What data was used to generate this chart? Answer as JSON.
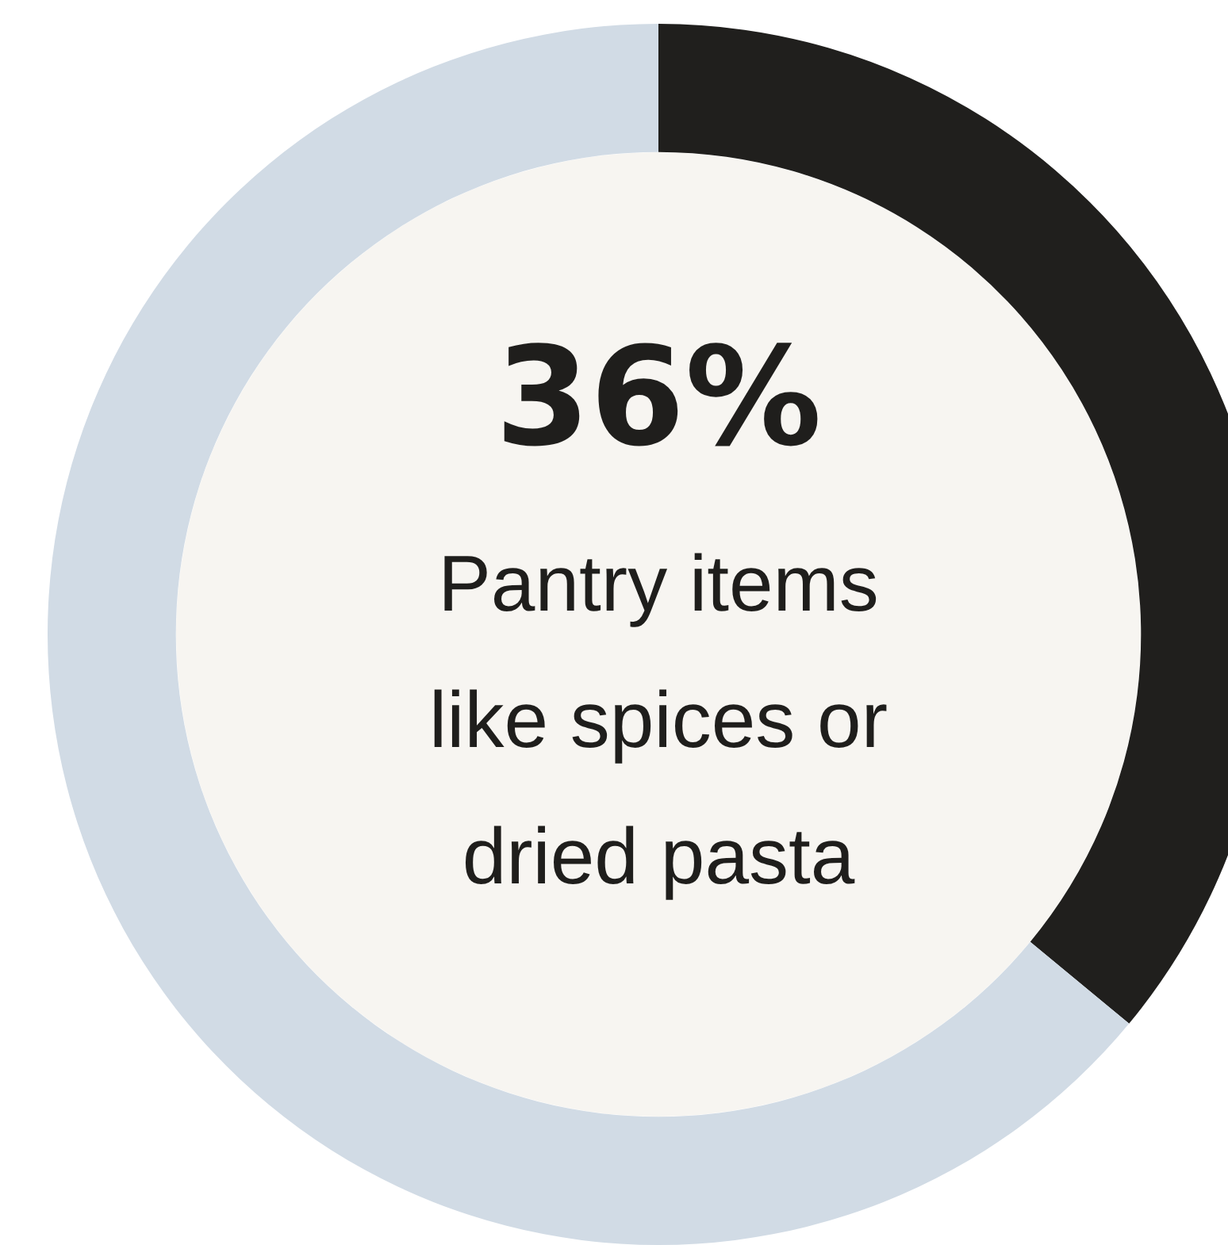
{
  "chart_data": {
    "type": "donut",
    "categories": [
      "Pantry items like spices or dried pasta",
      null
    ],
    "values": [
      36,
      64
    ],
    "colors": [
      "#201f1d",
      "#d1dbe5"
    ],
    "value_labels": [
      "36%",
      null
    ]
  }
}
